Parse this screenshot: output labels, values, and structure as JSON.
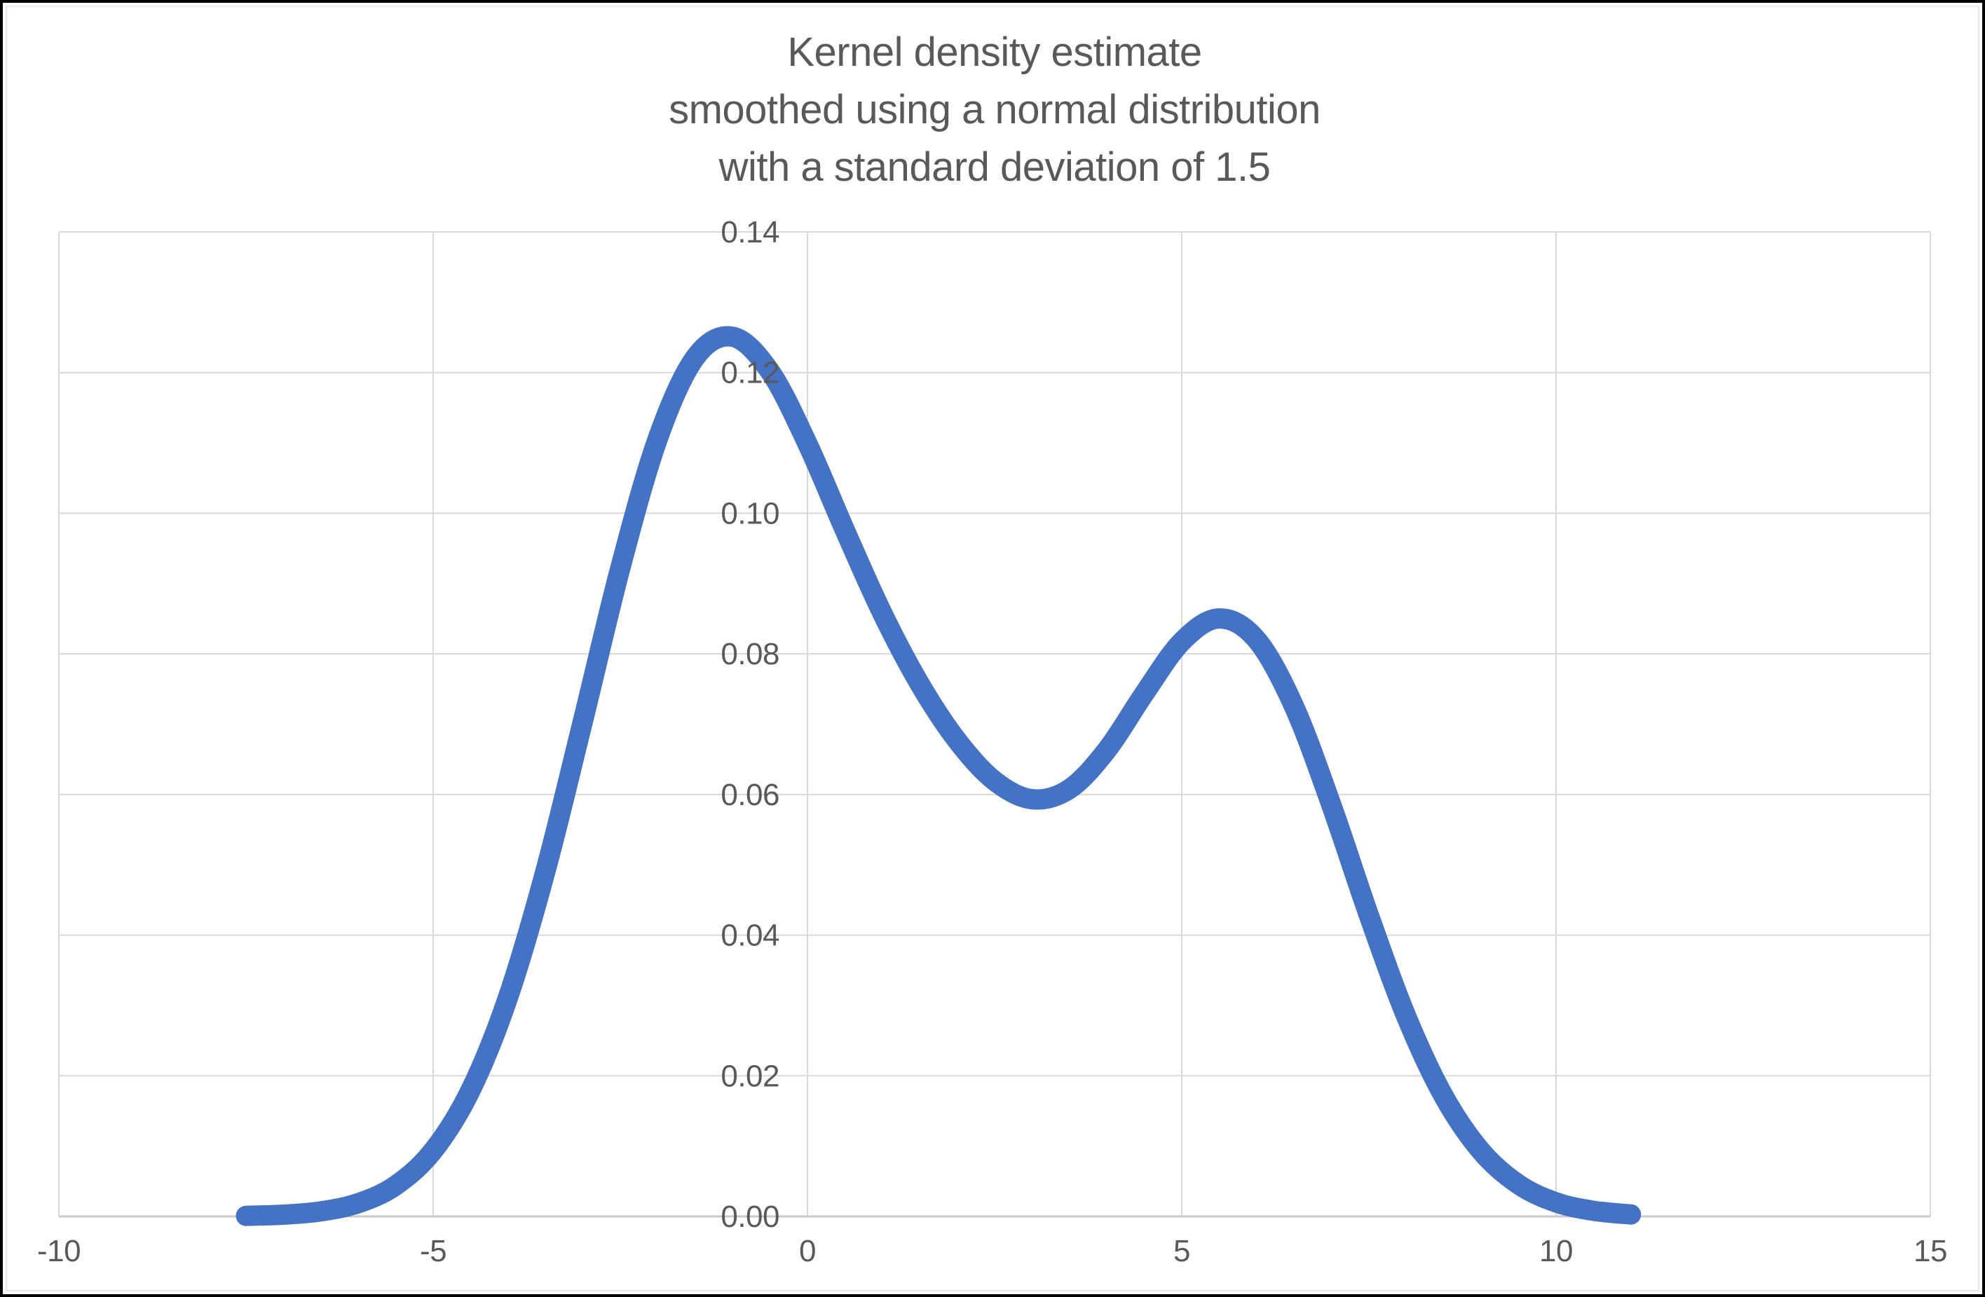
{
  "chart_data": {
    "type": "line",
    "title": "Kernel density estimate\nsmoothed using a normal distribution\nwith a standard deviation of 1.5",
    "title_lines": [
      "Kernel density estimate",
      "smoothed using a normal distribution",
      "with a standard deviation of 1.5"
    ],
    "xlabel": "",
    "ylabel": "",
    "xlim": [
      -10,
      15
    ],
    "ylim": [
      0,
      0.14
    ],
    "grid": true,
    "legend": "none",
    "x_ticks": [
      {
        "value": -10,
        "label": "-10"
      },
      {
        "value": -5,
        "label": "-5"
      },
      {
        "value": 0,
        "label": "0"
      },
      {
        "value": 5,
        "label": "5"
      },
      {
        "value": 10,
        "label": "10"
      },
      {
        "value": 15,
        "label": "15"
      }
    ],
    "y_ticks": [
      {
        "value": 0.0,
        "label": "0.00"
      },
      {
        "value": 0.02,
        "label": "0.02"
      },
      {
        "value": 0.04,
        "label": "0.04"
      },
      {
        "value": 0.06,
        "label": "0.06"
      },
      {
        "value": 0.08,
        "label": "0.08"
      },
      {
        "value": 0.1,
        "label": "0.10"
      },
      {
        "value": 0.12,
        "label": "0.12"
      },
      {
        "value": 0.14,
        "label": "0.14"
      }
    ],
    "series": [
      {
        "name": "kernel-density-estimate",
        "color": "#4472C4",
        "stroke_width": 29,
        "points": [
          [
            -7.5,
            8e-05
          ],
          [
            -7.0,
            0.00025
          ],
          [
            -6.5,
            0.00072
          ],
          [
            -6.0,
            0.00188
          ],
          [
            -5.5,
            0.00441
          ],
          [
            -5.0,
            0.00935
          ],
          [
            -4.5,
            0.01795
          ],
          [
            -4.0,
            0.03115
          ],
          [
            -3.5,
            0.0491
          ],
          [
            -3.0,
            0.07043
          ],
          [
            -2.5,
            0.0922
          ],
          [
            -2.0,
            0.11059
          ],
          [
            -1.5,
            0.12213
          ],
          [
            -1.0,
            0.12509
          ],
          [
            -0.5,
            0.12015
          ],
          [
            0.0,
            0.10988
          ],
          [
            0.5,
            0.09758
          ],
          [
            1.0,
            0.08578
          ],
          [
            1.5,
            0.07572
          ],
          [
            2.0,
            0.06767
          ],
          [
            2.5,
            0.06193
          ],
          [
            3.0,
            0.05933
          ],
          [
            3.5,
            0.06078
          ],
          [
            4.0,
            0.06633
          ],
          [
            4.5,
            0.07435
          ],
          [
            5.0,
            0.08173
          ],
          [
            5.5,
            0.08504
          ],
          [
            6.0,
            0.08202
          ],
          [
            6.5,
            0.07252
          ],
          [
            7.0,
            0.05846
          ],
          [
            7.5,
            0.04282
          ],
          [
            8.0,
            0.02842
          ],
          [
            8.5,
            0.01708
          ],
          [
            9.0,
            0.00927
          ],
          [
            9.5,
            0.00454
          ],
          [
            10.0,
            0.002
          ],
          [
            10.5,
            0.0008
          ],
          [
            11.0,
            0.00028
          ]
        ]
      }
    ],
    "annotations": {
      "left_peak": {
        "x": -1.06,
        "y": 0.125
      },
      "valley": {
        "x": 3.0,
        "y": 0.059
      },
      "right_peak": {
        "x": 5.5,
        "y": 0.085
      }
    }
  },
  "colors": {
    "curve": "#4472C4",
    "gridline": "#d9d9d9",
    "axis_line": "#c9c9c9",
    "text": "#595959",
    "background": "#ffffff",
    "frame": "#000000"
  }
}
